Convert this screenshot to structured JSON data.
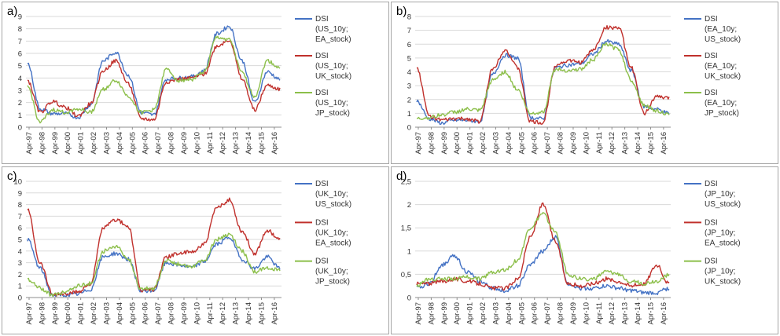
{
  "x_labels": [
    "Apr-97",
    "Apr-98",
    "Apr-99",
    "Apr-00",
    "Apr-01",
    "Apr-02",
    "Apr-03",
    "Apr-04",
    "Apr-05",
    "Apr-06",
    "Apr-07",
    "Apr-08",
    "Apr-09",
    "Apr-10",
    "Apr-11",
    "Apr-12",
    "Apr-13",
    "Apr-14",
    "Apr-15",
    "Apr-16"
  ],
  "colors": {
    "blue": "#4472c4",
    "red": "#c0302c",
    "green": "#8cbf4a"
  },
  "chart_data": [
    {
      "type": "line",
      "tag": "a)",
      "ylim": [
        0,
        9
      ],
      "yticks": [
        "0",
        "1",
        "2",
        "3",
        "4",
        "5",
        "6",
        "7",
        "8",
        "9"
      ],
      "series": [
        {
          "name_lines": [
            "DSI",
            "(US_10y;",
            "EA_stock)"
          ],
          "color": "#4472c4",
          "values": [
            5.2,
            1.5,
            1.1,
            1.1,
            0.8,
            1.8,
            5.4,
            6.1,
            4.2,
            1.2,
            1.0,
            3.9,
            4.0,
            4.1,
            4.6,
            7.6,
            8.2,
            5.4,
            2.0,
            4.5,
            3.9
          ]
        },
        {
          "name_lines": [
            "DSI",
            "(US_10y;",
            "UK_stock)"
          ],
          "color": "#c0302c",
          "values": [
            3.8,
            1.2,
            2.1,
            1.6,
            0.9,
            1.9,
            4.6,
            5.4,
            3.5,
            0.7,
            0.6,
            3.7,
            3.9,
            4.0,
            4.3,
            6.6,
            7.1,
            3.9,
            1.4,
            3.4,
            3.1
          ]
        },
        {
          "name_lines": [
            "DSI",
            "(US_10y;",
            "JP_stock)"
          ],
          "color": "#8cbf4a",
          "values": [
            3.3,
            0.4,
            1.4,
            1.2,
            1.5,
            1.2,
            3.1,
            3.8,
            2.5,
            1.2,
            1.4,
            4.7,
            3.8,
            3.9,
            4.5,
            7.3,
            7.1,
            4.4,
            2.5,
            5.4,
            4.8
          ]
        }
      ]
    },
    {
      "type": "line",
      "tag": "b)",
      "ylim": [
        0,
        8
      ],
      "yticks": [
        "0",
        "1",
        "2",
        "3",
        "4",
        "5",
        "6",
        "7",
        "8"
      ],
      "series": [
        {
          "name_lines": [
            "DSI",
            "(EA_10y;",
            "US_stock)"
          ],
          "color": "#4472c4",
          "values": [
            1.9,
            0.6,
            0.3,
            0.5,
            0.5,
            0.4,
            3.8,
            5.2,
            5.0,
            0.7,
            0.6,
            4.3,
            4.5,
            4.6,
            5.3,
            6.2,
            6.0,
            4.1,
            1.5,
            1.3,
            1.0
          ]
        },
        {
          "name_lines": [
            "DSI",
            "(EA_10y;",
            "UK_stock)"
          ],
          "color": "#c0302c",
          "values": [
            4.3,
            0.8,
            0.5,
            0.6,
            0.6,
            0.4,
            4.2,
            5.6,
            4.3,
            0.4,
            0.3,
            4.5,
            4.8,
            4.7,
            5.6,
            7.2,
            7.2,
            4.3,
            1.0,
            2.2,
            2.1
          ]
        },
        {
          "name_lines": [
            "DSI",
            "(EA_10y;",
            "JP_stock)"
          ],
          "color": "#8cbf4a",
          "values": [
            0.6,
            0.7,
            0.9,
            1.1,
            1.3,
            1.2,
            3.4,
            4.0,
            2.7,
            1.0,
            1.1,
            4.2,
            4.1,
            4.2,
            4.9,
            6.0,
            5.6,
            3.4,
            1.6,
            1.2,
            0.9
          ]
        }
      ]
    },
    {
      "type": "line",
      "tag": "c)",
      "ylim": [
        0,
        10
      ],
      "yticks": [
        "0",
        "1",
        "2",
        "3",
        "4",
        "5",
        "6",
        "7",
        "8",
        "9",
        "10"
      ],
      "series": [
        {
          "name_lines": [
            "DSI",
            "(UK_10y;",
            "US_stock)"
          ],
          "color": "#4472c4",
          "values": [
            5.0,
            2.5,
            0.2,
            0.2,
            0.3,
            0.7,
            3.5,
            3.8,
            3.3,
            0.5,
            0.6,
            3.0,
            2.8,
            2.6,
            3.1,
            4.6,
            5.2,
            3.3,
            2.5,
            3.5,
            2.5
          ]
        },
        {
          "name_lines": [
            "DSI",
            "(UK_10y;",
            "EA_stock)"
          ],
          "color": "#c0302c",
          "values": [
            7.6,
            3.0,
            0.3,
            0.3,
            0.5,
            1.2,
            6.0,
            6.7,
            6.1,
            0.6,
            0.7,
            3.5,
            3.8,
            3.9,
            4.6,
            7.7,
            8.4,
            5.7,
            3.8,
            5.8,
            5.0
          ]
        },
        {
          "name_lines": [
            "DSI",
            "(UK_10y;",
            "JP_stock)"
          ],
          "color": "#8cbf4a",
          "values": [
            1.6,
            0.8,
            0.2,
            0.5,
            1.0,
            1.2,
            4.0,
            4.4,
            3.3,
            0.7,
            0.8,
            3.2,
            2.9,
            2.7,
            3.2,
            5.0,
            5.4,
            4.0,
            2.2,
            2.6,
            2.3
          ]
        }
      ]
    },
    {
      "type": "line",
      "tag": "d)",
      "ylim": [
        0,
        2.5
      ],
      "yticks": [
        "0",
        "0,5",
        "1",
        "1,5",
        "2",
        "2,5"
      ],
      "series": [
        {
          "name_lines": [
            "DSI",
            "(JP_10y;",
            "US_stock)"
          ],
          "color": "#4472c4",
          "values": [
            0.2,
            0.3,
            0.7,
            0.9,
            0.55,
            0.35,
            0.2,
            0.15,
            0.25,
            0.7,
            1.0,
            1.3,
            0.3,
            0.2,
            0.2,
            0.25,
            0.2,
            0.15,
            0.1,
            0.1,
            0.2
          ]
        },
        {
          "name_lines": [
            "DSI",
            "(JP_10y;",
            "EA_stock)"
          ],
          "color": "#c0302c",
          "values": [
            0.3,
            0.3,
            0.35,
            0.4,
            0.35,
            0.3,
            0.2,
            0.2,
            0.4,
            1.3,
            2.0,
            1.2,
            0.3,
            0.25,
            0.3,
            0.4,
            0.35,
            0.25,
            0.3,
            0.7,
            0.3
          ]
        },
        {
          "name_lines": [
            "DSI",
            "(JP_10y;",
            "UK_stock)"
          ],
          "color": "#8cbf4a",
          "values": [
            0.25,
            0.4,
            0.4,
            0.4,
            0.45,
            0.4,
            0.55,
            0.6,
            0.8,
            1.5,
            1.8,
            1.4,
            0.5,
            0.4,
            0.4,
            0.55,
            0.5,
            0.35,
            0.3,
            0.35,
            0.5
          ]
        }
      ]
    }
  ]
}
